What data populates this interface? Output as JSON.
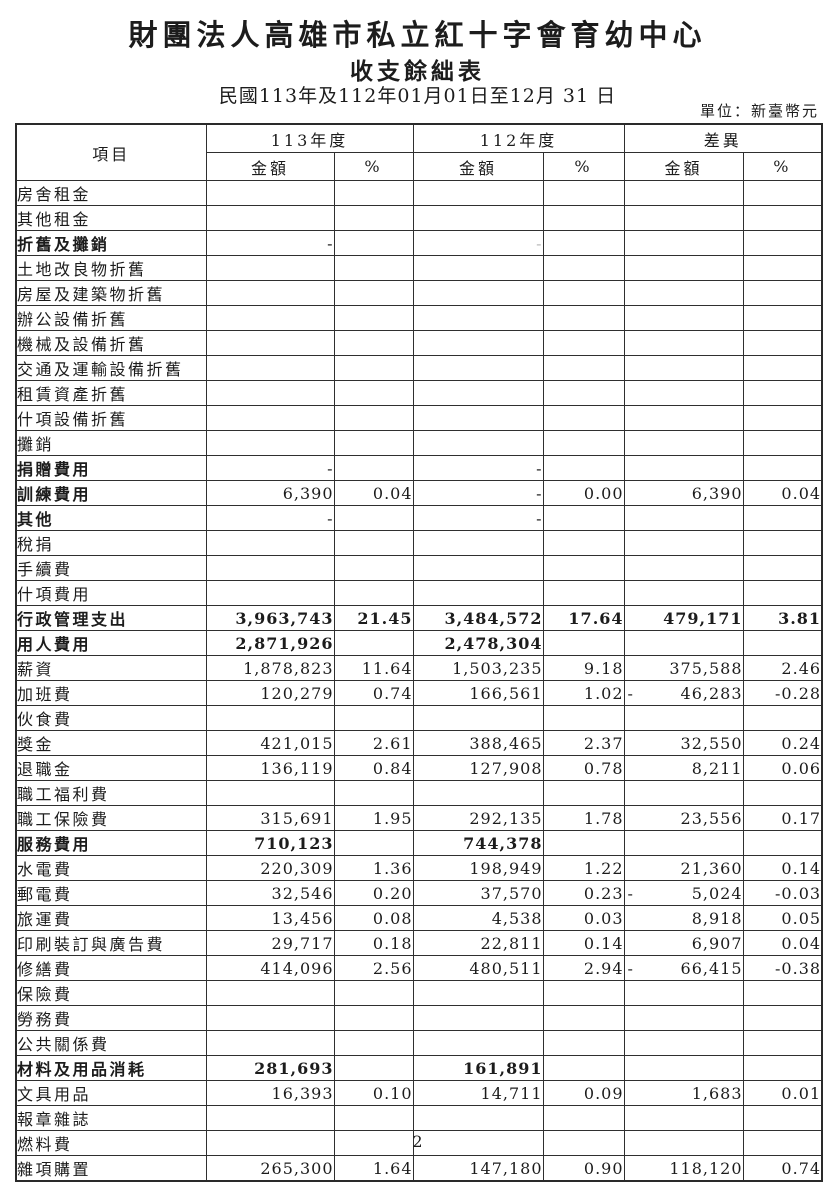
{
  "page": {
    "title_line1": "財團法人高雄市私立紅十字會育幼中心",
    "title_line2": "收支餘絀表",
    "title_line3": "民國113年及112年01月01日至12月 31 日",
    "unit_note": "單位：新臺幣元",
    "page_number": "2"
  },
  "table": {
    "col_headers": {
      "item": "項目",
      "year113": "113年度",
      "year112": "112年度",
      "diff": "差異",
      "amount": "金額",
      "percent": "%"
    },
    "rows": [
      {
        "label": "房舍租金",
        "level": "mid",
        "a113": "",
        "p113": "",
        "a112": "",
        "p112": "",
        "da": "",
        "dp": ""
      },
      {
        "label": "其他租金",
        "level": "mid",
        "a113": "",
        "p113": "",
        "a112": "",
        "p112": "",
        "da": "",
        "dp": ""
      },
      {
        "label": "折舊及攤銷",
        "level": "sub",
        "bold": true,
        "a113": "-",
        "p113": "",
        "a112": "-",
        "faint112": true,
        "p112": "",
        "da": "",
        "dp": ""
      },
      {
        "label": "土地改良物折舊",
        "level": "leaf",
        "a113": "",
        "p113": "",
        "a112": "",
        "p112": "",
        "da": "",
        "dp": ""
      },
      {
        "label": "房屋及建築物折舊",
        "level": "leaf",
        "a113": "",
        "p113": "",
        "a112": "",
        "p112": "",
        "da": "",
        "dp": ""
      },
      {
        "label": "辦公設備折舊",
        "level": "leaf",
        "a113": "",
        "p113": "",
        "a112": "",
        "p112": "",
        "da": "",
        "dp": ""
      },
      {
        "label": "機械及設備折舊",
        "level": "leaf",
        "a113": "",
        "p113": "",
        "a112": "",
        "p112": "",
        "da": "",
        "dp": ""
      },
      {
        "label": "交通及運輸設備折舊",
        "level": "leaf",
        "a113": "",
        "p113": "",
        "a112": "",
        "p112": "",
        "da": "",
        "dp": ""
      },
      {
        "label": "租賃資產折舊",
        "level": "leaf",
        "a113": "",
        "p113": "",
        "a112": "",
        "p112": "",
        "da": "",
        "dp": ""
      },
      {
        "label": "什項設備折舊",
        "level": "leaf",
        "a113": "",
        "p113": "",
        "a112": "",
        "p112": "",
        "da": "",
        "dp": ""
      },
      {
        "label": "攤銷",
        "level": "leaf",
        "a113": "",
        "p113": "",
        "a112": "",
        "p112": "",
        "da": "",
        "dp": ""
      },
      {
        "label": "捐贈費用",
        "level": "sub",
        "bold": true,
        "a113": "-",
        "p113": "",
        "a112": "-",
        "p112": "",
        "da": "",
        "dp": ""
      },
      {
        "label": "訓練費用",
        "level": "sub",
        "bold": true,
        "a113": "6,390",
        "p113": "0.04",
        "a112": "-",
        "p112": "0.00",
        "da": "6,390",
        "dp": "0.04"
      },
      {
        "label": "其他",
        "level": "sub",
        "bold": true,
        "a113": "-",
        "p113": "",
        "a112": "-",
        "p112": "",
        "da": "",
        "dp": ""
      },
      {
        "label": "稅捐",
        "level": "leaf",
        "a113": "",
        "p113": "",
        "a112": "",
        "p112": "",
        "da": "",
        "dp": ""
      },
      {
        "label": "手續費",
        "level": "leaf",
        "a113": "",
        "p113": "",
        "a112": "",
        "p112": "",
        "da": "",
        "dp": ""
      },
      {
        "label": "什項費用",
        "level": "leaf",
        "a113": "",
        "p113": "",
        "a112": "",
        "p112": "",
        "da": "",
        "dp": ""
      },
      {
        "label": "行政管理支出",
        "level": "top",
        "bold": true,
        "bold_nums": true,
        "a113": "3,963,743",
        "p113": "21.45",
        "a112": "3,484,572",
        "p112": "17.64",
        "da": "479,171",
        "dp": "3.81"
      },
      {
        "label": "用人費用",
        "level": "sub",
        "bold": true,
        "bold_nums": true,
        "a113": "2,871,926",
        "p113": "",
        "a112": "2,478,304",
        "p112": "",
        "da": "",
        "dp": ""
      },
      {
        "label": "薪資",
        "level": "leaf",
        "a113": "1,878,823",
        "p113": "11.64",
        "a112": "1,503,235",
        "p112": "9.18",
        "da": "375,588",
        "dp": "2.46"
      },
      {
        "label": "加班費",
        "level": "leaf",
        "a113": "120,279",
        "p113": "0.74",
        "a112": "166,561",
        "p112": "1.02",
        "da": "46,283",
        "neg": true,
        "dp": "-0.28"
      },
      {
        "label": "伙食費",
        "level": "leaf",
        "a113": "",
        "p113": "",
        "a112": "",
        "p112": "",
        "da": "",
        "dp": ""
      },
      {
        "label": "獎金",
        "level": "leaf",
        "a113": "421,015",
        "p113": "2.61",
        "a112": "388,465",
        "p112": "2.37",
        "da": "32,550",
        "dp": "0.24"
      },
      {
        "label": "退職金",
        "level": "leaf",
        "a113": "136,119",
        "p113": "0.84",
        "a112": "127,908",
        "p112": "0.78",
        "da": "8,211",
        "dp": "0.06"
      },
      {
        "label": "職工福利費",
        "level": "leaf",
        "a113": "",
        "p113": "",
        "a112": "",
        "p112": "",
        "da": "",
        "dp": ""
      },
      {
        "label": "職工保險費",
        "level": "leaf",
        "a113": "315,691",
        "p113": "1.95",
        "a112": "292,135",
        "p112": "1.78",
        "da": "23,556",
        "dp": "0.17"
      },
      {
        "label": "服務費用",
        "level": "sub",
        "bold": true,
        "bold_nums": true,
        "a113": "710,123",
        "p113": "",
        "a112": "744,378",
        "p112": "",
        "da": "",
        "dp": ""
      },
      {
        "label": "水電費",
        "level": "leaf",
        "a113": "220,309",
        "p113": "1.36",
        "a112": "198,949",
        "p112": "1.22",
        "da": "21,360",
        "dp": "0.14"
      },
      {
        "label": "郵電費",
        "level": "leaf",
        "a113": "32,546",
        "p113": "0.20",
        "a112": "37,570",
        "p112": "0.23",
        "da": "5,024",
        "neg": true,
        "dp": "-0.03"
      },
      {
        "label": "旅運費",
        "level": "leaf",
        "a113": "13,456",
        "p113": "0.08",
        "a112": "4,538",
        "p112": "0.03",
        "da": "8,918",
        "dp": "0.05"
      },
      {
        "label": "印刷裝訂與廣告費",
        "level": "leaf",
        "a113": "29,717",
        "p113": "0.18",
        "a112": "22,811",
        "p112": "0.14",
        "da": "6,907",
        "dp": "0.04"
      },
      {
        "label": "修繕費",
        "level": "leaf",
        "a113": "414,096",
        "p113": "2.56",
        "a112": "480,511",
        "p112": "2.94",
        "da": "66,415",
        "neg": true,
        "dp": "-0.38"
      },
      {
        "label": "保險費",
        "level": "leaf",
        "a113": "",
        "p113": "",
        "a112": "",
        "p112": "",
        "da": "",
        "dp": ""
      },
      {
        "label": "勞務費",
        "level": "leaf",
        "a113": "",
        "p113": "",
        "a112": "",
        "p112": "",
        "da": "",
        "dp": ""
      },
      {
        "label": "公共關係費",
        "level": "leaf",
        "a113": "",
        "p113": "",
        "a112": "",
        "p112": "",
        "da": "",
        "dp": ""
      },
      {
        "label": "材料及用品消耗",
        "level": "sub",
        "bold": true,
        "bold_nums": true,
        "a113": "281,693",
        "p113": "",
        "a112": "161,891",
        "p112": "",
        "da": "",
        "dp": ""
      },
      {
        "label": "文具用品",
        "level": "leaf",
        "a113": "16,393",
        "p113": "0.10",
        "a112": "14,711",
        "p112": "0.09",
        "da": "1,683",
        "dp": "0.01"
      },
      {
        "label": "報章雜誌",
        "level": "leaf",
        "a113": "",
        "p113": "",
        "a112": "",
        "p112": "",
        "da": "",
        "dp": ""
      },
      {
        "label": "燃料費",
        "level": "leaf",
        "a113": "",
        "p113": "",
        "a112": "",
        "p112": "",
        "da": "",
        "dp": ""
      },
      {
        "label": "雜項購置",
        "level": "leaf",
        "a113": "265,300",
        "p113": "1.64",
        "a112": "147,180",
        "p112": "0.90",
        "da": "118,120",
        "dp": "0.74"
      }
    ]
  }
}
